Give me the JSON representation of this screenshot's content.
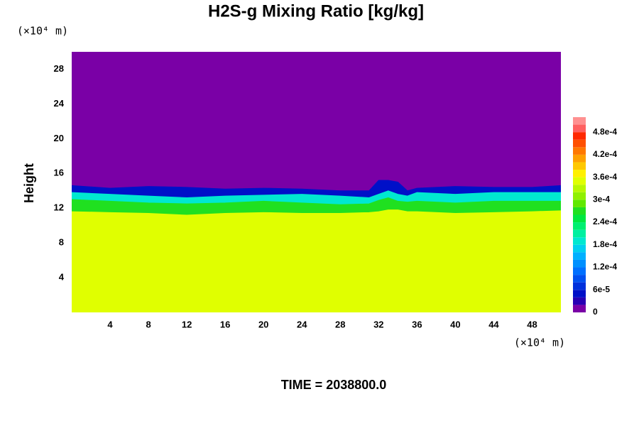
{
  "chart_data": {
    "type": "contour",
    "title": "H2S-g Mixing Ratio [kg/kg]",
    "ylabel": "Height",
    "x_unit": "(×10⁴ m)",
    "y_unit": "(×10⁴ m)",
    "footer": "TIME = 2038800.0",
    "xlim": [
      0,
      51
    ],
    "ylim": [
      0,
      30
    ],
    "xticks": [
      4,
      8,
      12,
      16,
      20,
      24,
      28,
      32,
      36,
      40,
      44,
      48
    ],
    "yticks": [
      4,
      8,
      12,
      16,
      20,
      24,
      28
    ],
    "x": [
      0,
      4,
      8,
      12,
      16,
      20,
      24,
      28,
      31,
      32,
      33,
      34,
      35,
      36,
      40,
      44,
      48,
      51
    ],
    "layers": [
      {
        "value": 0,
        "tops": [
          30,
          30,
          30,
          30,
          30,
          30,
          30,
          30,
          30,
          30,
          30,
          30,
          30,
          30,
          30,
          30,
          30,
          30
        ]
      },
      {
        "value": 5e-05,
        "tops": [
          14.6,
          14.3,
          14.5,
          14.4,
          14.2,
          14.3,
          14.2,
          14.0,
          14.0,
          15.2,
          15.2,
          15.0,
          14.0,
          14.3,
          14.5,
          14.4,
          14.4,
          14.6
        ]
      },
      {
        "value": 0.00019,
        "tops": [
          13.8,
          13.6,
          13.4,
          13.2,
          13.4,
          13.5,
          13.6,
          13.4,
          13.2,
          13.6,
          14.0,
          13.6,
          13.4,
          13.8,
          13.6,
          13.8,
          13.8,
          13.8
        ]
      },
      {
        "value": 0.00027,
        "tops": [
          13.0,
          12.8,
          12.6,
          12.5,
          12.6,
          12.8,
          12.6,
          12.4,
          12.5,
          12.9,
          13.2,
          12.8,
          12.7,
          12.8,
          12.6,
          12.8,
          12.8,
          12.8
        ]
      },
      {
        "value": 0.00035,
        "tops": [
          11.6,
          11.5,
          11.4,
          11.2,
          11.4,
          11.5,
          11.4,
          11.4,
          11.5,
          11.6,
          11.8,
          11.8,
          11.6,
          11.6,
          11.4,
          11.5,
          11.6,
          11.7
        ]
      }
    ],
    "colorbar": {
      "levels": [
        0,
        2e-05,
        4e-05,
        6e-05,
        8e-05,
        0.0001,
        0.00012,
        0.00014,
        0.00016,
        0.00018,
        0.0002,
        0.00022,
        0.00024,
        0.00026,
        0.00028,
        0.0003,
        0.00032,
        0.00034,
        0.00036,
        0.00038,
        0.0004,
        0.00042,
        0.00044,
        0.00046,
        0.00048,
        0.0005,
        0.00052
      ],
      "colors": [
        "#7a00a6",
        "#2800b4",
        "#0010c8",
        "#0030dc",
        "#0050f0",
        "#0070ff",
        "#0090ff",
        "#00b0ff",
        "#00d0f0",
        "#00e8d0",
        "#00f0a0",
        "#00f070",
        "#00e840",
        "#20e020",
        "#60e800",
        "#90f000",
        "#b8f800",
        "#e0ff00",
        "#fff000",
        "#ffc800",
        "#ffa000",
        "#ff7800",
        "#ff5000",
        "#ff2800",
        "#ff6060",
        "#ff9090"
      ],
      "ticks": [
        0,
        {
          "value": 6e-05,
          "label": "6e-5"
        },
        {
          "value": 0.00012,
          "label": "1.2e-4"
        },
        {
          "value": 0.00018,
          "label": "1.8e-4"
        },
        {
          "value": 0.00024,
          "label": "2.4e-4"
        },
        {
          "value": 0.0003,
          "label": "3e-4"
        },
        {
          "value": 0.00036,
          "label": "3.6e-4"
        },
        {
          "value": 0.00042,
          "label": "4.2e-4"
        },
        {
          "value": 0.00048,
          "label": "4.8e-4"
        }
      ]
    }
  }
}
